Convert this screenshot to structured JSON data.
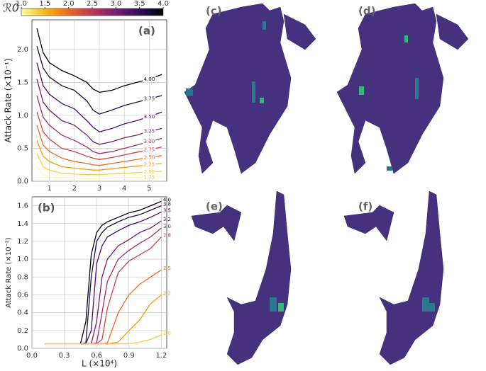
{
  "colorbar": {
    "label": "ℛ0",
    "ticks": [
      {
        "value": 1,
        "label": "1.0"
      },
      1.5,
      {
        "value": 2,
        "label": "2.0"
      },
      2.5,
      {
        "value": 3,
        "label": "3.0"
      },
      3.5,
      {
        "value": 4,
        "label": "4.0"
      }
    ],
    "range": [
      1,
      4
    ],
    "colors": [
      "#fcffa4",
      "#f9c932",
      "#f98e09",
      "#e35932",
      "#bc3754",
      "#892269",
      "#57106e",
      "#210c4a",
      "#000004"
    ]
  },
  "chart_data": [
    {
      "type": "line",
      "panel_label": "(a)",
      "ylabel": "Attack Rate (×10⁻¹)",
      "x": [
        0.5,
        0.75,
        1,
        1.5,
        2,
        2.5,
        2.75,
        3,
        3.5,
        4,
        4.5,
        5,
        5.5
      ],
      "xlim": [
        0.3,
        5.7
      ],
      "ylim": [
        0,
        2.45
      ],
      "xticks": [
        1,
        2,
        3,
        4,
        5
      ],
      "yticks": [
        {
          "value": 0,
          "label": "0.0"
        },
        0.5,
        {
          "value": 1,
          "label": "1.0"
        },
        1.5,
        {
          "value": 2,
          "label": "2.0"
        }
      ],
      "grid": true,
      "series": [
        {
          "name": "4.00",
          "color": "#000004",
          "values": [
            2.32,
            1.95,
            1.8,
            1.68,
            1.6,
            1.5,
            1.4,
            1.35,
            1.38,
            1.45,
            1.5,
            1.55,
            1.62
          ]
        },
        {
          "name": "3.75",
          "color": "#1b0c41",
          "values": [
            2.05,
            1.72,
            1.58,
            1.45,
            1.38,
            1.22,
            1.08,
            1.02,
            1.08,
            1.15,
            1.2,
            1.25,
            1.3
          ]
        },
        {
          "name": "3.50",
          "color": "#4a0c6b",
          "values": [
            1.8,
            1.45,
            1.32,
            1.18,
            1.1,
            0.92,
            0.82,
            0.75,
            0.8,
            0.87,
            0.92,
            0.98,
            1.05
          ]
        },
        {
          "name": "3.25",
          "color": "#781c6d",
          "values": [
            1.55,
            1.2,
            1.08,
            0.92,
            0.85,
            0.7,
            0.6,
            0.56,
            0.6,
            0.66,
            0.7,
            0.76,
            0.8
          ]
        },
        {
          "name": "3.00",
          "color": "#a52c60",
          "values": [
            1.3,
            0.97,
            0.85,
            0.7,
            0.62,
            0.52,
            0.45,
            0.42,
            0.45,
            0.5,
            0.55,
            0.6,
            0.65
          ]
        },
        {
          "name": "2.75",
          "color": "#cf4446",
          "values": [
            1.05,
            0.75,
            0.64,
            0.5,
            0.45,
            0.38,
            0.35,
            0.33,
            0.36,
            0.4,
            0.44,
            0.48,
            0.52
          ]
        },
        {
          "name": "2.50",
          "color": "#ed6925",
          "values": [
            0.85,
            0.55,
            0.45,
            0.35,
            0.3,
            0.27,
            0.25,
            0.24,
            0.27,
            0.3,
            0.33,
            0.36,
            0.39
          ]
        },
        {
          "name": "2.25",
          "color": "#fb9b06",
          "values": [
            0.62,
            0.38,
            0.3,
            0.22,
            0.2,
            0.18,
            0.17,
            0.17,
            0.19,
            0.21,
            0.23,
            0.25,
            0.27
          ]
        },
        {
          "name": "2.00",
          "color": "#f7d13d",
          "values": [
            0.42,
            0.22,
            0.17,
            0.12,
            0.11,
            0.1,
            0.1,
            0.1,
            0.11,
            0.12,
            0.13,
            0.14,
            0.15
          ]
        },
        {
          "name": "1.75",
          "color": "#fcffa4",
          "values": [
            0.22,
            0.1,
            0.07,
            0.05,
            0.05,
            0.04,
            0.04,
            0.04,
            0.05,
            0.05,
            0.06,
            0.06,
            0.07
          ]
        }
      ]
    },
    {
      "type": "line",
      "panel_label": "(b)",
      "ylabel": "Attack Rate (×10⁻²)",
      "xlabel": "L (×10⁴)",
      "x": [
        0.12,
        0.3,
        0.45,
        0.5,
        0.55,
        0.6,
        0.65,
        0.7,
        0.8,
        0.9,
        1.0,
        1.1,
        1.2
      ],
      "xlim": [
        0,
        1.25
      ],
      "ylim": [
        0,
        1.7
      ],
      "xticks": [
        {
          "value": 0,
          "label": "0.0"
        },
        0.3,
        0.6,
        0.9,
        1.2
      ],
      "yticks": [
        {
          "value": 0,
          "label": "0.0"
        },
        0.2,
        0.4,
        0.6,
        0.8,
        {
          "value": 1,
          "label": "1.0"
        },
        1.2,
        1.4,
        1.6
      ],
      "grid": true,
      "series": [
        {
          "name": "4.0",
          "color": "#000004",
          "values": [
            0.05,
            0.05,
            0.05,
            0.3,
            1.05,
            1.3,
            1.38,
            1.42,
            1.47,
            1.52,
            1.55,
            1.6,
            1.65
          ]
        },
        {
          "name": "3.8",
          "color": "#1b0c41",
          "values": [
            0.05,
            0.05,
            0.05,
            0.06,
            0.8,
            1.2,
            1.3,
            1.36,
            1.42,
            1.47,
            1.5,
            1.55,
            1.6
          ]
        },
        {
          "name": "3.5",
          "color": "#4a0c6b",
          "values": [
            0.05,
            0.05,
            0.05,
            0.05,
            0.2,
            0.95,
            1.15,
            1.25,
            1.32,
            1.38,
            1.42,
            1.47,
            1.53
          ]
        },
        {
          "name": "3.2",
          "color": "#781c6d",
          "values": [
            0.05,
            0.05,
            0.05,
            0.05,
            0.05,
            0.3,
            0.8,
            1.0,
            1.15,
            1.22,
            1.3,
            1.35,
            1.43
          ]
        },
        {
          "name": "3.0",
          "color": "#a52c60",
          "values": [
            0.05,
            0.05,
            0.05,
            0.05,
            0.05,
            0.06,
            0.4,
            0.75,
            1.0,
            1.1,
            1.18,
            1.25,
            1.35
          ]
        },
        {
          "name": "2.8",
          "color": "#cf4446",
          "values": [
            0.05,
            0.05,
            0.05,
            0.05,
            0.05,
            0.05,
            0.1,
            0.45,
            0.85,
            0.98,
            1.05,
            1.12,
            1.25
          ]
        },
        {
          "name": "2.5",
          "color": "#ed6925",
          "values": [
            0.05,
            0.05,
            0.05,
            0.05,
            0.05,
            0.05,
            0.05,
            0.06,
            0.4,
            0.6,
            0.72,
            0.8,
            0.88
          ]
        },
        {
          "name": "2.2",
          "color": "#fb9b06",
          "values": [
            0.05,
            0.05,
            0.05,
            0.05,
            0.05,
            0.05,
            0.05,
            0.05,
            0.07,
            0.2,
            0.32,
            0.5,
            0.6
          ]
        },
        {
          "name": "2.0",
          "color": "#f7d13d",
          "values": [
            0.05,
            0.05,
            0.05,
            0.05,
            0.05,
            0.05,
            0.05,
            0.05,
            0.05,
            0.05,
            0.07,
            0.1,
            0.15
          ]
        }
      ]
    }
  ],
  "maps": [
    {
      "label": "(c)"
    },
    {
      "label": "(d)"
    },
    {
      "label": "(e)"
    },
    {
      "label": "(f)"
    }
  ]
}
